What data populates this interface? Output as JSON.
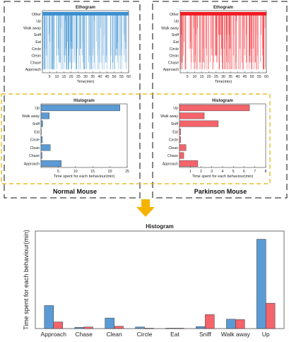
{
  "chart_data": [
    {
      "id": "eth_normal",
      "type": "ethogram",
      "title": "Ethogram",
      "xlabel": "Time(min)",
      "xlim": [
        0,
        60
      ],
      "xticks": [
        5,
        10,
        15,
        20,
        25,
        30,
        35,
        40,
        45,
        50,
        55,
        60
      ],
      "categories": [
        "Approach",
        "Chase",
        "Clean",
        "Circle",
        "Eat",
        "Sniff",
        "Walk away",
        "Up",
        "Other"
      ],
      "color": "#3b8fcf"
    },
    {
      "id": "eth_park",
      "type": "ethogram",
      "title": "Ethogram",
      "xlabel": "Time(min)",
      "xlim": [
        0,
        60
      ],
      "xticks": [
        5,
        10,
        15,
        20,
        25,
        30,
        35,
        40,
        45,
        50,
        55,
        60
      ],
      "categories": [
        "Approach",
        "Chase",
        "Clean",
        "Circle",
        "Eat",
        "Sniff",
        "Walk away",
        "Up",
        "Other"
      ],
      "color": "#ef1c24"
    },
    {
      "id": "hist_normal",
      "type": "bar",
      "orientation": "horizontal",
      "title": "Histogram",
      "xlabel": "Time spent for each behaviour(min)",
      "xlim": [
        0,
        25
      ],
      "xticks": [
        5,
        10,
        15,
        20,
        25
      ],
      "categories": [
        "Approach",
        "Chase",
        "Clean",
        "Circle",
        "Eat",
        "Sniff",
        "Walk away",
        "Up"
      ],
      "values": [
        5.9,
        0.3,
        2.7,
        0.4,
        0.1,
        0.5,
        2.4,
        22.9
      ],
      "color": "#5b9bd5"
    },
    {
      "id": "hist_park",
      "type": "bar",
      "orientation": "horizontal",
      "title": "Histogram",
      "xlabel": "Time spent for each behaviour(min)",
      "xlim": [
        0,
        8
      ],
      "xticks": [
        1,
        2,
        3,
        4,
        5,
        6,
        7,
        8
      ],
      "categories": [
        "Approach",
        "Chase",
        "Clean",
        "Circle",
        "Eat",
        "Sniff",
        "Walk away",
        "Up"
      ],
      "values": [
        1.7,
        0.4,
        0.6,
        0.1,
        0.1,
        3.6,
        2.3,
        6.5
      ],
      "color": "#f4646b"
    },
    {
      "id": "hist_combined",
      "type": "bar",
      "title": "Histogram",
      "ylabel": "Time spent for each behaviour(min)",
      "ylim": [
        0,
        25
      ],
      "categories": [
        "Approach",
        "Chase",
        "Clean",
        "Circle",
        "Eat",
        "Sniff",
        "Walk away",
        "Up"
      ],
      "series": [
        {
          "values": [
            5.9,
            0.3,
            2.7,
            0.4,
            0.1,
            0.5,
            2.4,
            22.9
          ],
          "color": "#5b9bd5"
        },
        {
          "values": [
            1.7,
            0.4,
            0.6,
            0.1,
            0.1,
            3.6,
            2.3,
            6.5
          ],
          "color": "#f4646b"
        }
      ]
    }
  ],
  "labels": {
    "normal": "Normal Mouse",
    "parkinson": "Parkinson Mouse"
  },
  "colors": {
    "panel_border": "#444444",
    "hist_border": "#e0b000",
    "arrow": "#f5b301"
  }
}
